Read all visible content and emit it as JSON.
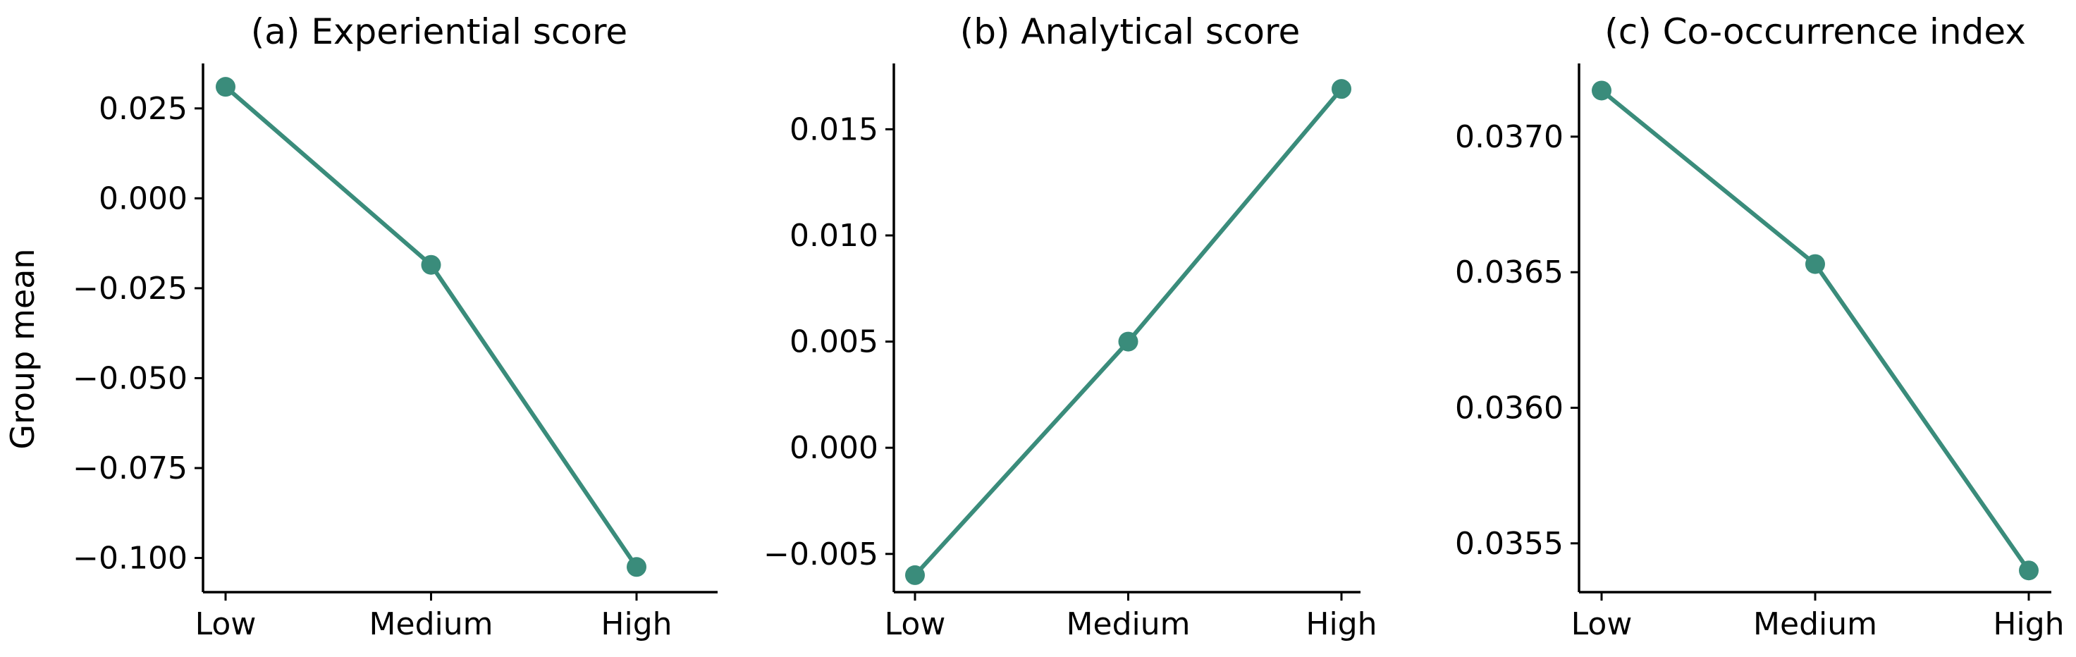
{
  "figure": {
    "ylabel": "Group mean",
    "color": "#3a8c7b"
  },
  "chart_data": [
    {
      "type": "line",
      "title": "(a) Experiential score",
      "categories": [
        "Low",
        "Medium",
        "High"
      ],
      "values": [
        0.031,
        -0.0185,
        -0.1025
      ],
      "ylim": [
        -0.1095,
        0.0375
      ],
      "yticks": [
        -0.1,
        -0.075,
        -0.05,
        -0.025,
        0.0,
        0.025
      ],
      "ytick_labels": [
        "−0.100",
        "−0.075",
        "−0.050",
        "−0.025",
        "0.000",
        "0.025"
      ],
      "grid": false,
      "legend": "none"
    },
    {
      "type": "line",
      "title": "(b) Analytical score",
      "categories": [
        "Low",
        "Medium",
        "High"
      ],
      "values": [
        -0.006,
        0.005,
        0.0169
      ],
      "ylim": [
        -0.0068,
        0.0181
      ],
      "yticks": [
        -0.005,
        0.0,
        0.005,
        0.01,
        0.015
      ],
      "ytick_labels": [
        "−0.005",
        "0.000",
        "0.005",
        "0.010",
        "0.015"
      ],
      "grid": false,
      "legend": "none"
    },
    {
      "type": "line",
      "title": "(c) Co-occurrence index",
      "categories": [
        "Low",
        "Medium",
        "High"
      ],
      "values": [
        0.03717,
        0.03653,
        0.0354
      ],
      "ylim": [
        0.03532,
        0.03727
      ],
      "yticks": [
        0.0355,
        0.036,
        0.0365,
        0.037
      ],
      "ytick_labels": [
        "0.0355",
        "0.0360",
        "0.0365",
        "0.0370"
      ],
      "grid": false,
      "legend": "none"
    }
  ]
}
